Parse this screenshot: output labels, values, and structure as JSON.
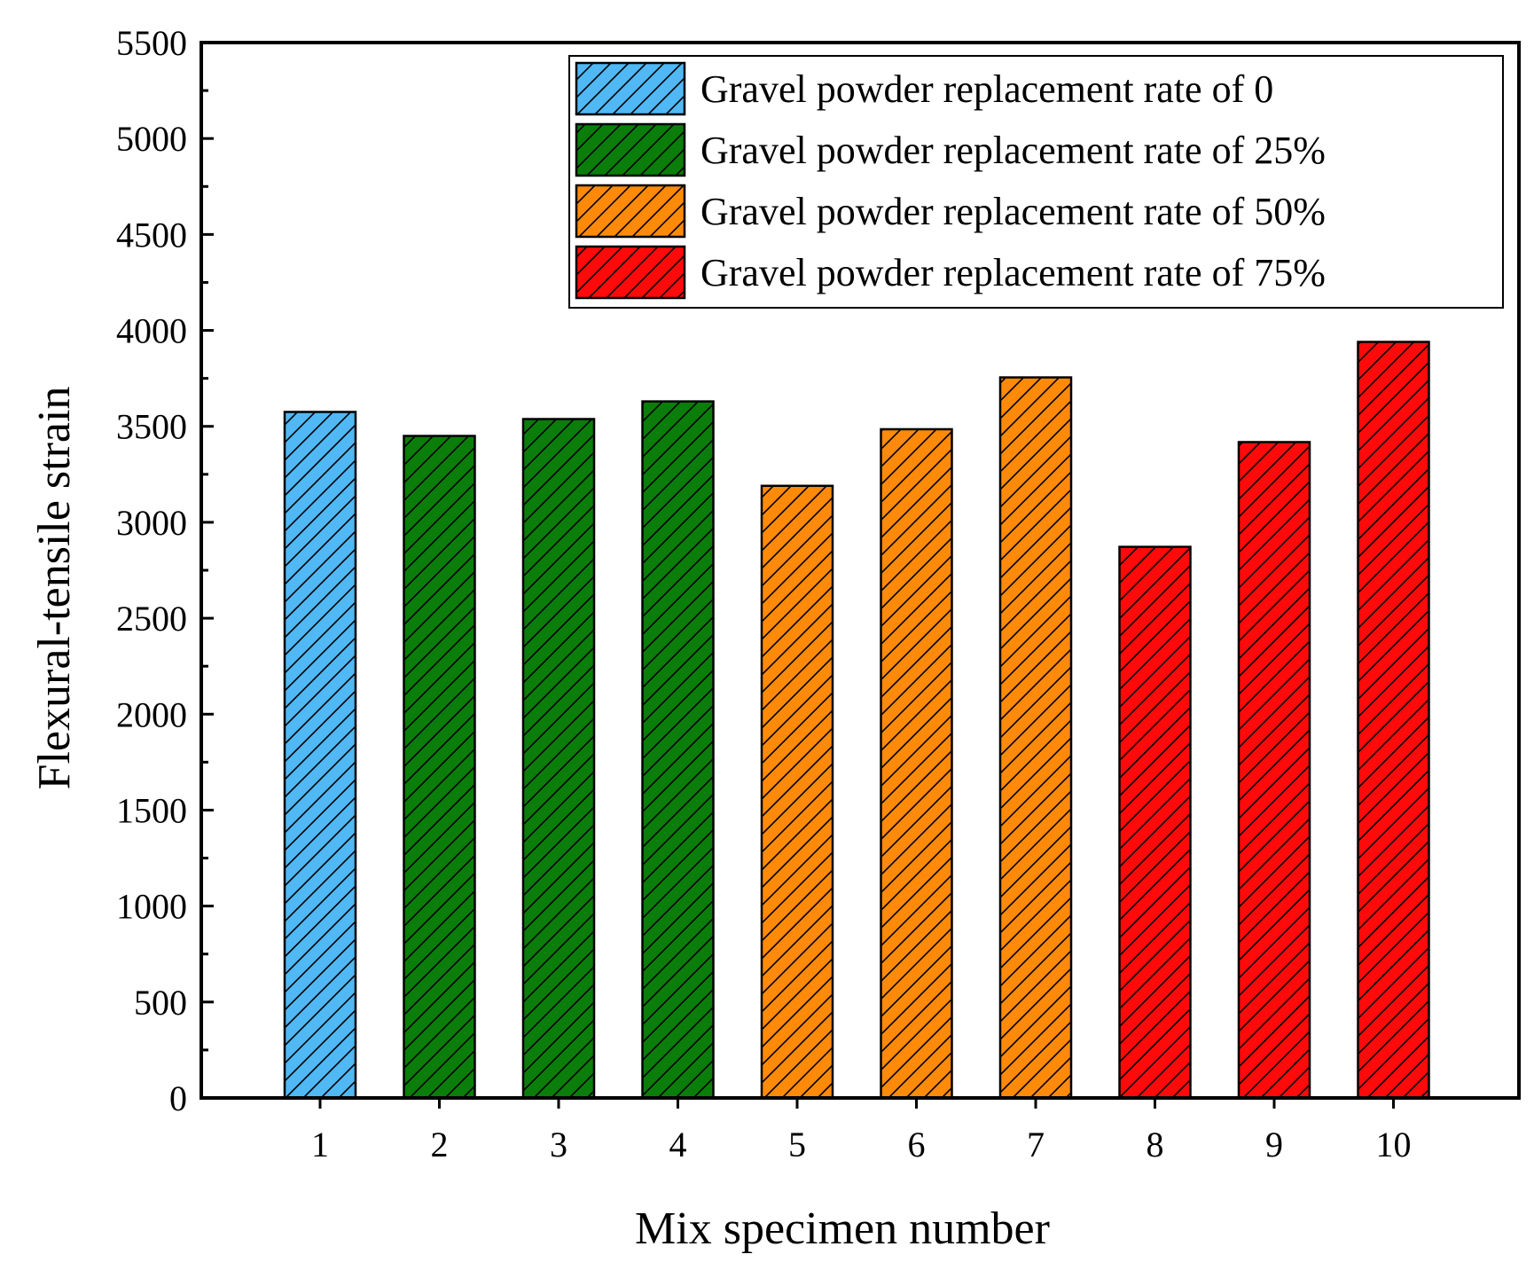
{
  "chart_data": {
    "type": "bar",
    "title": "",
    "xlabel": "Mix specimen number",
    "ylabel": "Flexural-tensile strain",
    "ylim": [
      0,
      5500
    ],
    "y_major_step": 500,
    "y_minor_step": 250,
    "grid": false,
    "legend_position": "top-right",
    "categories": [
      "1",
      "2",
      "3",
      "4",
      "5",
      "6",
      "7",
      "8",
      "9",
      "10"
    ],
    "values": [
      3575,
      3450,
      3538,
      3630,
      3190,
      3485,
      3755,
      2872,
      3418,
      3940
    ],
    "groups": [
      0,
      1,
      1,
      1,
      2,
      2,
      2,
      3,
      3,
      3
    ],
    "series": [
      {
        "name": "Gravel powder replacement rate of 0",
        "color": "#4fb8f5"
      },
      {
        "name": "Gravel powder replacement rate of 25%",
        "color": "#0a7d0a"
      },
      {
        "name": "Gravel powder replacement rate of 50%",
        "color": "#ff8a0a"
      },
      {
        "name": "Gravel powder replacement rate of 75%",
        "color": "#ff0a0a"
      }
    ],
    "yticks": [
      "0",
      "500",
      "1000",
      "1500",
      "2000",
      "2500",
      "3000",
      "3500",
      "4000",
      "4500",
      "5000",
      "5500"
    ]
  }
}
